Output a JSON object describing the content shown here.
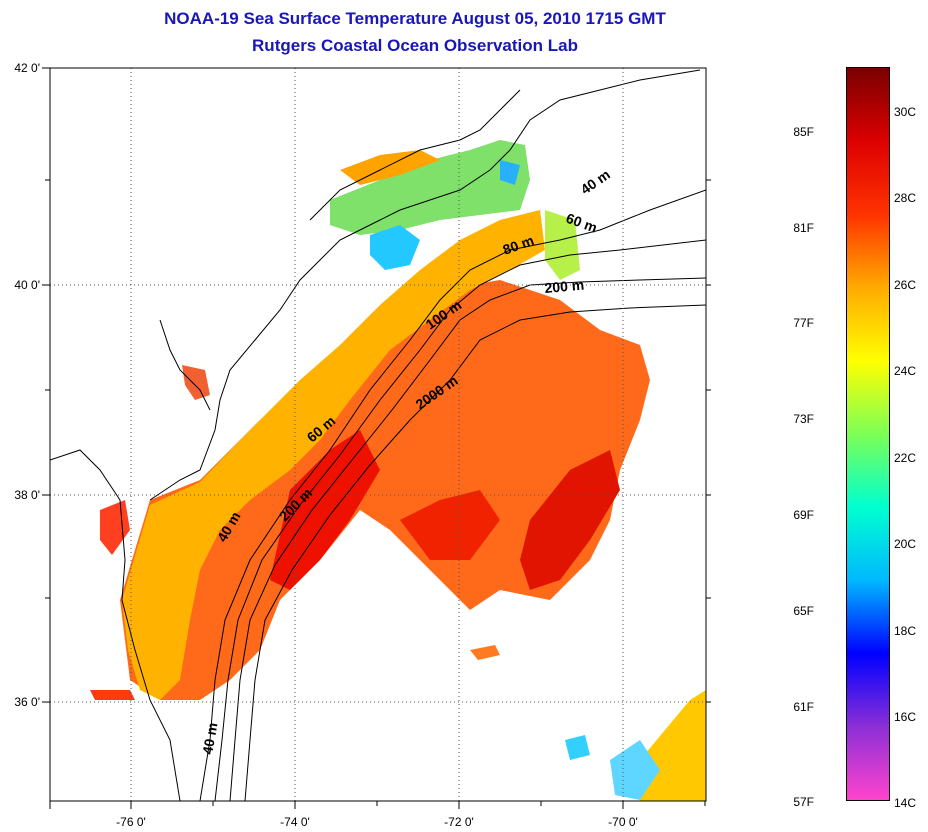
{
  "title_line1": "NOAA-19 Sea Surface Temperature August 05, 2010 1715 GMT",
  "title_line2": "Rutgers Coastal Ocean Observation Lab",
  "x_ticks": [
    "-76 0'",
    "-74 0'",
    "-72 0'",
    "-70 0'"
  ],
  "y_ticks": [
    "42 0'",
    "40 0'",
    "38 0'",
    "36 0'"
  ],
  "depth_contours": [
    "40 m",
    "60 m",
    "80 m",
    "200 m",
    "100 m",
    "2000 m",
    "60 m",
    "200 m",
    "40 m",
    "40 m"
  ],
  "colorbar_f": [
    "85F",
    "81F",
    "77F",
    "73F",
    "69F",
    "65F",
    "61F",
    "57F"
  ],
  "colorbar_c": [
    "30C",
    "28C",
    "26C",
    "24C",
    "22C",
    "20C",
    "18C",
    "16C",
    "14C"
  ],
  "colorbar_colors": [
    "#ff44cc",
    "#8c2fd6",
    "#0000ff",
    "#00b8ff",
    "#00ffd0",
    "#7dff55",
    "#ffff00",
    "#ffaa00",
    "#ff3300",
    "#dd0000",
    "#7a0000"
  ],
  "axes": {
    "lon_range": [
      -77,
      -69
    ],
    "lat_range": [
      35,
      42
    ]
  }
}
